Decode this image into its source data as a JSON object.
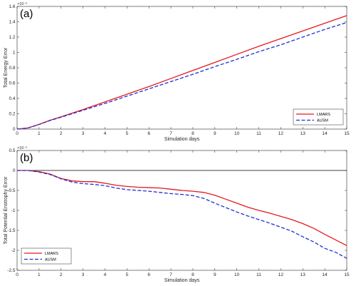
{
  "chart_data": [
    {
      "type": "line",
      "panel_label": "(a)",
      "xlabel": "Simulation days",
      "ylabel": "Total Energy Error",
      "xlim": [
        0,
        15
      ],
      "ylim": [
        0,
        1.6e-06
      ],
      "x_ticks": [
        0,
        1,
        2,
        3,
        4,
        5,
        6,
        7,
        8,
        9,
        10,
        11,
        12,
        13,
        14,
        15
      ],
      "x_tick_labels": [
        "0",
        "1",
        "2",
        "3",
        "4",
        "5",
        "6",
        "7",
        "8",
        "9",
        "10",
        "11",
        "12",
        "13",
        "14",
        "15"
      ],
      "y_ticks": [
        0,
        2e-07,
        4e-07,
        6e-07,
        8e-07,
        1e-06,
        1.2e-06,
        1.4e-06,
        1.6e-06
      ],
      "y_tick_labels": [
        "0",
        "0.2",
        "0.4",
        "0.6",
        "0.8",
        "1",
        "1.2",
        "1.4",
        "1.6"
      ],
      "y_exponent_label": "×10⁻⁶",
      "zero_line": false,
      "legend_position": "bottom-right",
      "series": [
        {
          "name": "LMARS",
          "color": "#e41a1c",
          "style": "solid",
          "x": [
            0,
            0.5,
            1,
            1.5,
            2,
            3,
            4,
            5,
            6,
            7,
            8,
            9,
            10,
            11,
            12,
            13,
            14,
            15
          ],
          "y": [
            0,
            1.5e-08,
            6.2e-08,
            1.15e-07,
            1.6e-07,
            2.55e-07,
            3.55e-07,
            4.55e-07,
            5.55e-07,
            6.6e-07,
            7.65e-07,
            8.7e-07,
            9.75e-07,
            1.08e-06,
            1.18e-06,
            1.28e-06,
            1.38e-06,
            1.48e-06
          ]
        },
        {
          "name": "AUSM",
          "color": "#1f2fd6",
          "style": "dashed",
          "x": [
            0,
            0.5,
            1,
            1.5,
            2,
            3,
            4,
            5,
            6,
            7,
            8,
            9,
            10,
            11,
            12,
            13,
            14,
            15
          ],
          "y": [
            0,
            1.5e-08,
            6e-08,
            1.12e-07,
            1.55e-07,
            2.45e-07,
            3.35e-07,
            4.3e-07,
            5.25e-07,
            6.2e-07,
            7.15e-07,
            8.15e-07,
            9.1e-07,
            1.01e-06,
            1.1e-06,
            1.2e-06,
            1.3e-06,
            1.39e-06
          ]
        }
      ]
    },
    {
      "type": "line",
      "panel_label": "(b)",
      "xlabel": "Simulation days",
      "ylabel": "Total Potential Enstrophy Error",
      "xlim": [
        0,
        15
      ],
      "ylim": [
        -2.5e-05,
        5e-06
      ],
      "x_ticks": [
        0,
        1,
        2,
        3,
        4,
        5,
        6,
        7,
        8,
        9,
        10,
        11,
        12,
        13,
        14,
        15
      ],
      "x_tick_labels": [
        "0",
        "1",
        "2",
        "3",
        "4",
        "5",
        "6",
        "7",
        "8",
        "9",
        "10",
        "11",
        "12",
        "13",
        "14",
        "15"
      ],
      "y_ticks": [
        -2.5e-05,
        -2e-05,
        -1.5e-05,
        -1e-05,
        -5e-06,
        0,
        5e-06
      ],
      "y_tick_labels": [
        "-2.5",
        "-2",
        "-1.5",
        "-1",
        "-0.5",
        "0",
        "0.5"
      ],
      "y_exponent_label": "×10⁻⁵",
      "zero_line": true,
      "legend_position": "bottom-left",
      "series": [
        {
          "name": "LMARS",
          "color": "#e41a1c",
          "style": "solid",
          "x": [
            0,
            0.5,
            1,
            1.5,
            2,
            2.5,
            3,
            3.5,
            4,
            4.5,
            5,
            5.5,
            6,
            6.5,
            7,
            7.5,
            8,
            8.5,
            9,
            9.5,
            10,
            10.5,
            11,
            11.5,
            12,
            12.5,
            13,
            13.5,
            14,
            14.5,
            15
          ],
          "y": [
            0,
            -5e-09,
            -3e-07,
            -9e-07,
            -2e-06,
            -2.6e-06,
            -2.8e-06,
            -2.8e-06,
            -3.2e-06,
            -3.7e-06,
            -4e-06,
            -4.2e-06,
            -4.3e-06,
            -4.4e-06,
            -4.7e-06,
            -5e-06,
            -5.2e-06,
            -5.5e-06,
            -6.2e-06,
            -7.2e-06,
            -8.2e-06,
            -9.2e-06,
            -1e-05,
            -1.07e-05,
            -1.15e-05,
            -1.23e-05,
            -1.33e-05,
            -1.45e-05,
            -1.6e-05,
            -1.74e-05,
            -1.88e-05
          ]
        },
        {
          "name": "AUSM",
          "color": "#1f2fd6",
          "style": "dashed",
          "x": [
            0,
            0.5,
            1,
            1.5,
            2,
            2.5,
            3,
            3.5,
            4,
            4.5,
            5,
            5.5,
            6,
            6.5,
            7,
            7.5,
            8,
            8.5,
            9,
            9.5,
            10,
            10.5,
            11,
            11.5,
            12,
            12.5,
            13,
            13.5,
            14,
            14.5,
            15
          ],
          "y": [
            0,
            -5e-09,
            -4e-07,
            -1e-06,
            -2.1e-06,
            -2.9e-06,
            -3.3e-06,
            -3.5e-06,
            -3.8e-06,
            -4.4e-06,
            -4.8e-06,
            -5e-06,
            -5.2e-06,
            -5.5e-06,
            -5.8e-06,
            -6e-06,
            -6.3e-06,
            -7e-06,
            -8.2e-06,
            -9.3e-06,
            -1.04e-05,
            -1.14e-05,
            -1.23e-05,
            -1.32e-05,
            -1.42e-05,
            -1.52e-05,
            -1.66e-05,
            -1.79e-05,
            -1.95e-05,
            -2.05e-05,
            -2.2e-05
          ]
        }
      ]
    }
  ]
}
